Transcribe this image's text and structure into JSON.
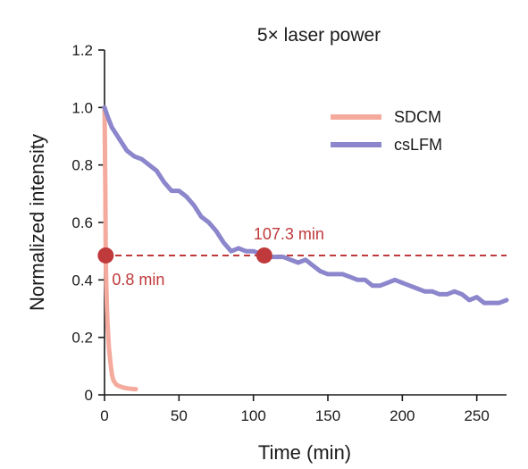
{
  "chart_data": {
    "type": "line",
    "title": "5× laser power",
    "xlabel": "Time (min)",
    "ylabel": "Normalized intensity",
    "xlim": [
      0,
      270
    ],
    "ylim": [
      0,
      1.2
    ],
    "x_ticks": [
      "0",
      "50",
      "100",
      "150",
      "200",
      "250"
    ],
    "y_ticks": [
      "0",
      "0.2",
      "0.4",
      "0.6",
      "0.8",
      "1.0",
      "1.2"
    ],
    "legend_position": "top-right",
    "series": [
      {
        "name": "SDCM",
        "color": "#f4aa9c",
        "x": [
          0,
          0.3,
          0.6,
          0.8,
          1.0,
          1.3,
          1.6,
          2.0,
          2.5,
          3,
          4,
          5,
          6,
          8,
          10,
          13,
          16,
          20,
          21
        ],
        "y": [
          1.0,
          0.85,
          0.68,
          0.5,
          0.42,
          0.36,
          0.3,
          0.25,
          0.2,
          0.16,
          0.11,
          0.07,
          0.05,
          0.035,
          0.03,
          0.025,
          0.022,
          0.02,
          0.02
        ]
      },
      {
        "name": "csLFM",
        "color": "#8c86cc",
        "x": [
          0,
          2,
          5,
          10,
          15,
          20,
          25,
          30,
          35,
          40,
          45,
          50,
          55,
          60,
          65,
          70,
          75,
          80,
          85,
          90,
          95,
          100,
          105,
          110,
          115,
          120,
          125,
          130,
          135,
          140,
          145,
          150,
          155,
          160,
          165,
          170,
          175,
          180,
          185,
          190,
          195,
          200,
          205,
          210,
          215,
          220,
          225,
          230,
          235,
          240,
          245,
          250,
          255,
          260,
          265,
          270
        ],
        "y": [
          1.0,
          0.97,
          0.93,
          0.89,
          0.85,
          0.83,
          0.82,
          0.8,
          0.78,
          0.74,
          0.71,
          0.71,
          0.69,
          0.66,
          0.62,
          0.6,
          0.57,
          0.53,
          0.5,
          0.51,
          0.5,
          0.5,
          0.49,
          0.48,
          0.48,
          0.48,
          0.47,
          0.46,
          0.47,
          0.45,
          0.43,
          0.42,
          0.42,
          0.42,
          0.41,
          0.4,
          0.4,
          0.38,
          0.38,
          0.39,
          0.4,
          0.39,
          0.38,
          0.37,
          0.36,
          0.36,
          0.35,
          0.35,
          0.36,
          0.35,
          0.33,
          0.34,
          0.32,
          0.32,
          0.32,
          0.33
        ]
      }
    ],
    "threshold": {
      "y": 0.485,
      "color": "#c0393b"
    },
    "annotations": [
      {
        "text": "0.8 min",
        "x": 0.8,
        "y": 0.485
      },
      {
        "text": "107.3 min",
        "x": 107.3,
        "y": 0.485
      }
    ]
  }
}
